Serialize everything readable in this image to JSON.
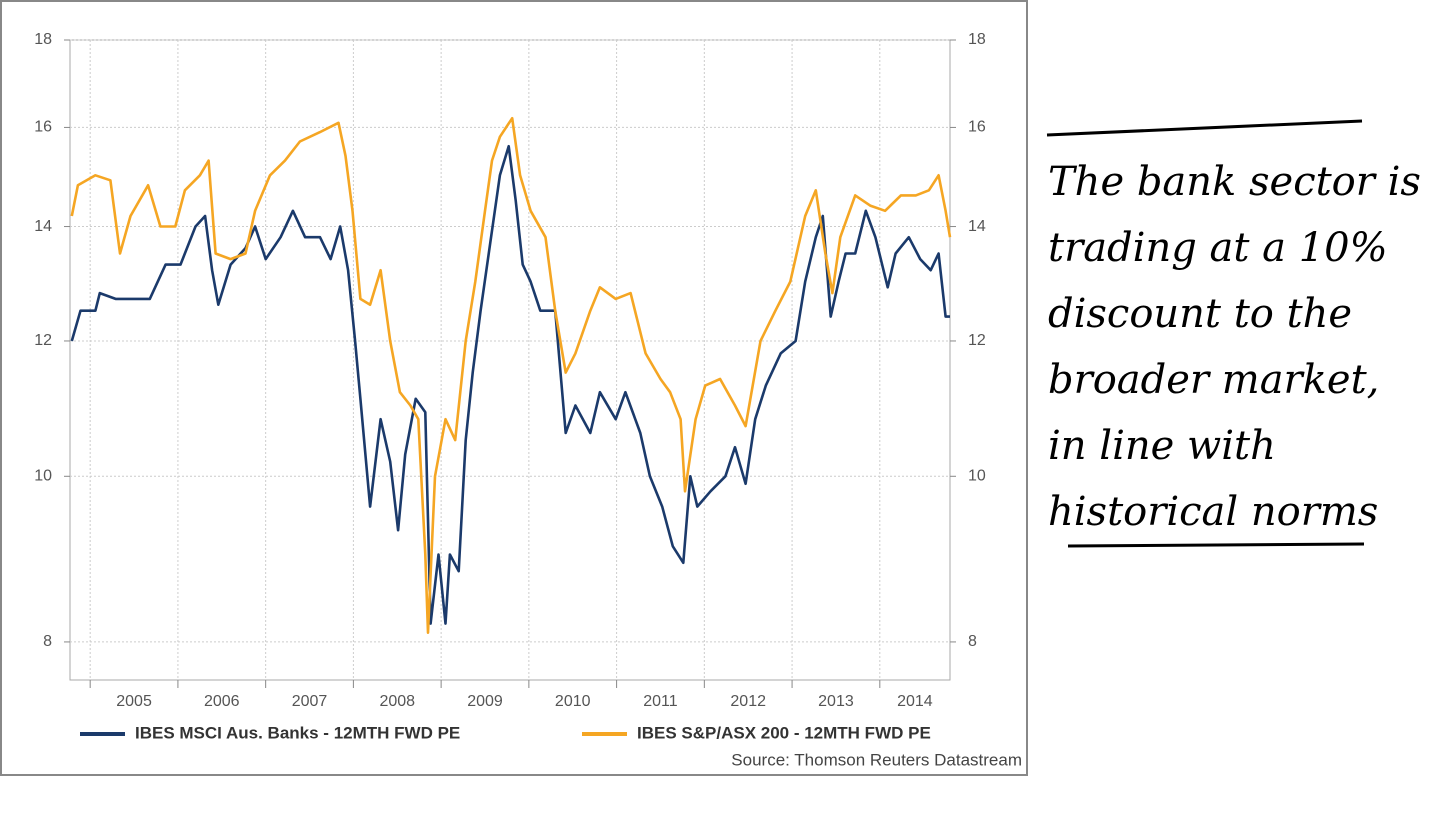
{
  "chart_data": {
    "type": "line",
    "log_scale": true,
    "grid": true,
    "xlim": [
      2004.77,
      2014.8
    ],
    "xticks": [
      {
        "value": 2005,
        "label": "2005"
      },
      {
        "value": 2006,
        "label": "2006"
      },
      {
        "value": 2007,
        "label": "2007"
      },
      {
        "value": 2008,
        "label": "2008"
      },
      {
        "value": 2009,
        "label": "2009"
      },
      {
        "value": 2010,
        "label": "2010"
      },
      {
        "value": 2011,
        "label": "2011"
      },
      {
        "value": 2012,
        "label": "2012"
      },
      {
        "value": 2013,
        "label": "2013"
      },
      {
        "value": 2014,
        "label": "2014"
      }
    ],
    "ylim": [
      7.6,
      18
    ],
    "yticks": [
      8,
      10,
      12,
      14,
      16,
      18
    ],
    "legend": "bottom",
    "source": "Source: Thomson Reuters Datastream",
    "annotation": [
      "The bank sector is",
      "trading at a 10%",
      "discount to the",
      "broader market,",
      "in line with",
      "historical norms"
    ],
    "series": [
      {
        "name": "IBES MSCI Aus. Banks - 12MTH FWD PE",
        "color": "#1b3a6b",
        "x": [
          2004.79,
          2004.89,
          2005.06,
          2005.11,
          2005.29,
          2005.46,
          2005.68,
          2005.86,
          2006.03,
          2006.2,
          2006.31,
          2006.39,
          2006.46,
          2006.6,
          2006.77,
          2006.88,
          2007.0,
          2007.17,
          2007.31,
          2007.45,
          2007.62,
          2007.74,
          2007.85,
          2007.94,
          2008.02,
          2008.08,
          2008.19,
          2008.31,
          2008.42,
          2008.51,
          2008.59,
          2008.71,
          2008.82,
          2008.88,
          2008.97,
          2009.05,
          2009.1,
          2009.2,
          2009.28,
          2009.36,
          2009.45,
          2009.56,
          2009.67,
          2009.77,
          2009.85,
          2009.93,
          2010.02,
          2010.13,
          2010.3,
          2010.42,
          2010.53,
          2010.7,
          2010.81,
          2010.99,
          2011.1,
          2011.27,
          2011.38,
          2011.52,
          2011.64,
          2011.76,
          2011.84,
          2011.92,
          2012.07,
          2012.24,
          2012.35,
          2012.47,
          2012.58,
          2012.7,
          2012.87,
          2013.04,
          2013.15,
          2013.27,
          2013.35,
          2013.44,
          2013.53,
          2013.61,
          2013.72,
          2013.84,
          2013.95,
          2014.09,
          2014.18,
          2014.33,
          2014.46,
          2014.58,
          2014.67,
          2014.75,
          2014.8
        ],
        "values": [
          12.0,
          12.5,
          12.5,
          12.8,
          12.7,
          12.7,
          12.7,
          13.3,
          13.3,
          14.0,
          14.2,
          13.2,
          12.6,
          13.3,
          13.6,
          14.0,
          13.4,
          13.8,
          14.3,
          13.8,
          13.8,
          13.4,
          14.0,
          13.2,
          12.0,
          11.1,
          9.6,
          10.8,
          10.2,
          9.3,
          10.3,
          11.1,
          10.9,
          8.2,
          9.0,
          8.2,
          9.0,
          8.8,
          10.5,
          11.5,
          12.5,
          13.7,
          15.0,
          15.6,
          14.5,
          13.3,
          13.0,
          12.5,
          12.5,
          10.6,
          11.0,
          10.6,
          11.2,
          10.8,
          11.2,
          10.6,
          10.0,
          9.6,
          9.1,
          8.9,
          10.0,
          9.6,
          9.8,
          10.0,
          10.4,
          9.9,
          10.8,
          11.3,
          11.8,
          12.0,
          13.0,
          13.8,
          14.2,
          12.4,
          13.0,
          13.5,
          13.5,
          14.3,
          13.8,
          12.9,
          13.5,
          13.8,
          13.4,
          13.2,
          13.5,
          12.4,
          12.4
        ]
      },
      {
        "name": "IBES S&P/ASX 200 - 12MTH FWD PE",
        "color": "#f5a623",
        "x": [
          2004.79,
          2004.86,
          2005.06,
          2005.23,
          2005.34,
          2005.46,
          2005.66,
          2005.8,
          2005.97,
          2006.08,
          2006.25,
          2006.35,
          2006.43,
          2006.6,
          2006.77,
          2006.88,
          2007.05,
          2007.22,
          2007.39,
          2007.62,
          2007.83,
          2007.91,
          2007.99,
          2008.08,
          2008.19,
          2008.31,
          2008.42,
          2008.53,
          2008.65,
          2008.74,
          2008.82,
          2008.85,
          2008.93,
          2009.05,
          2009.16,
          2009.28,
          2009.39,
          2009.5,
          2009.58,
          2009.67,
          2009.81,
          2009.9,
          2010.02,
          2010.19,
          2010.3,
          2010.42,
          2010.53,
          2010.7,
          2010.81,
          2010.99,
          2011.16,
          2011.33,
          2011.5,
          2011.61,
          2011.73,
          2011.78,
          2011.9,
          2012.01,
          2012.18,
          2012.35,
          2012.47,
          2012.64,
          2012.81,
          2012.98,
          2013.15,
          2013.27,
          2013.38,
          2013.46,
          2013.55,
          2013.72,
          2013.89,
          2014.06,
          2014.24,
          2014.41,
          2014.56,
          2014.67,
          2014.75,
          2014.8
        ],
        "values": [
          14.2,
          14.8,
          15.0,
          14.9,
          13.5,
          14.2,
          14.8,
          14.0,
          14.0,
          14.7,
          15.0,
          15.3,
          13.5,
          13.4,
          13.5,
          14.3,
          15.0,
          15.3,
          15.7,
          15.9,
          16.1,
          15.4,
          14.3,
          12.7,
          12.6,
          13.2,
          12.0,
          11.2,
          11.0,
          10.8,
          9.0,
          8.1,
          10.0,
          10.8,
          10.5,
          12.0,
          13.0,
          14.3,
          15.3,
          15.8,
          16.2,
          15.0,
          14.3,
          13.8,
          12.5,
          11.5,
          11.8,
          12.5,
          12.9,
          12.7,
          12.8,
          11.8,
          11.4,
          11.2,
          10.8,
          9.8,
          10.8,
          11.3,
          11.4,
          11.0,
          10.7,
          12.0,
          12.5,
          13.0,
          14.2,
          14.7,
          13.5,
          12.8,
          13.8,
          14.6,
          14.4,
          14.3,
          14.6,
          14.6,
          14.7,
          15.0,
          14.3,
          13.8
        ]
      }
    ]
  }
}
